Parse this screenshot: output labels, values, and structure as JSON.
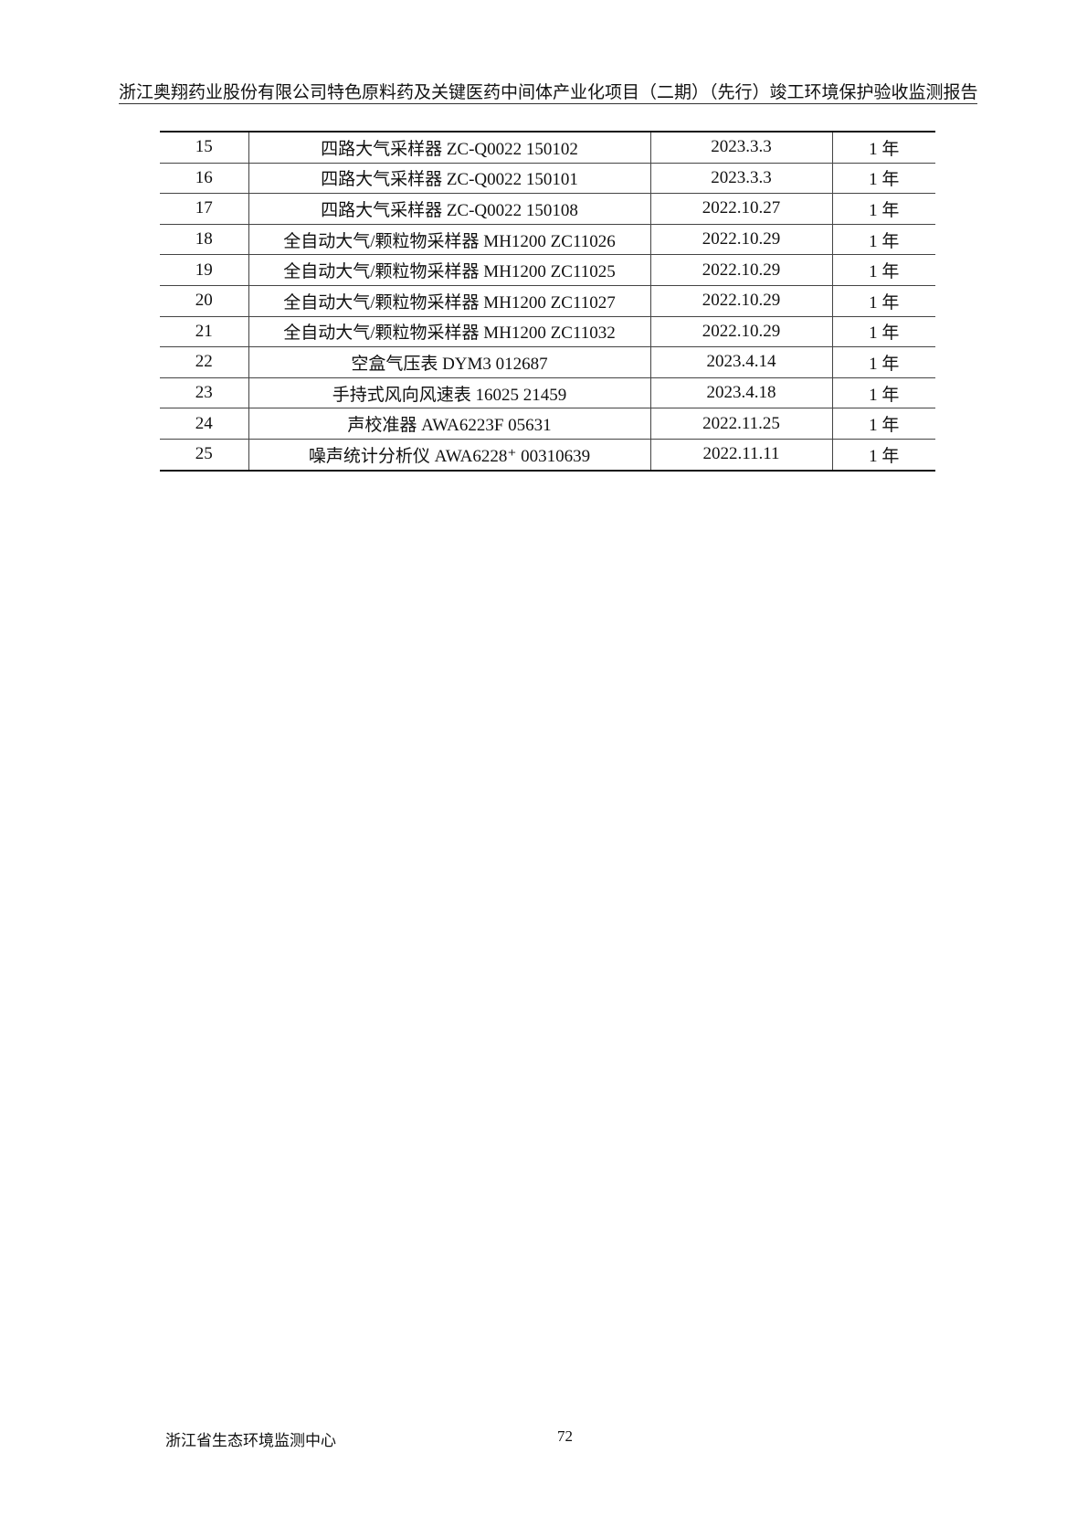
{
  "header": {
    "title": "浙江奥翔药业股份有限公司特色原料药及关键医药中间体产业化项目（二期）（先行）竣工环境保护验收监测报告"
  },
  "table": {
    "rows": [
      [
        "15",
        "四路大气采样器  ZC-Q0022 150102",
        "2023.3.3",
        "1 年"
      ],
      [
        "16",
        "四路大气采样器  ZC-Q0022 150101",
        "2023.3.3",
        "1 年"
      ],
      [
        "17",
        "四路大气采样器  ZC-Q0022 150108",
        "2022.10.27",
        "1 年"
      ],
      [
        "18",
        "全自动大气/颗粒物采样器  MH1200 ZC11026",
        "2022.10.29",
        "1 年"
      ],
      [
        "19",
        "全自动大气/颗粒物采样器  MH1200 ZC11025",
        "2022.10.29",
        "1 年"
      ],
      [
        "20",
        "全自动大气/颗粒物采样器  MH1200 ZC11027",
        "2022.10.29",
        "1 年"
      ],
      [
        "21",
        "全自动大气/颗粒物采样器  MH1200 ZC11032",
        "2022.10.29",
        "1 年"
      ],
      [
        "22",
        "空盒气压表 DYM3 012687",
        "2023.4.14",
        "1 年"
      ],
      [
        "23",
        "手持式风向风速表 16025 21459",
        "2023.4.18",
        "1 年"
      ],
      [
        "24",
        "声校准器  AWA6223F 05631",
        "2022.11.25",
        "1 年"
      ],
      [
        "25",
        "噪声统计分析仪  AWA6228⁺ 00310639",
        "2022.11.11",
        "1 年"
      ]
    ]
  },
  "footer": {
    "org": "浙江省生态环境监测中心",
    "page": "72"
  }
}
